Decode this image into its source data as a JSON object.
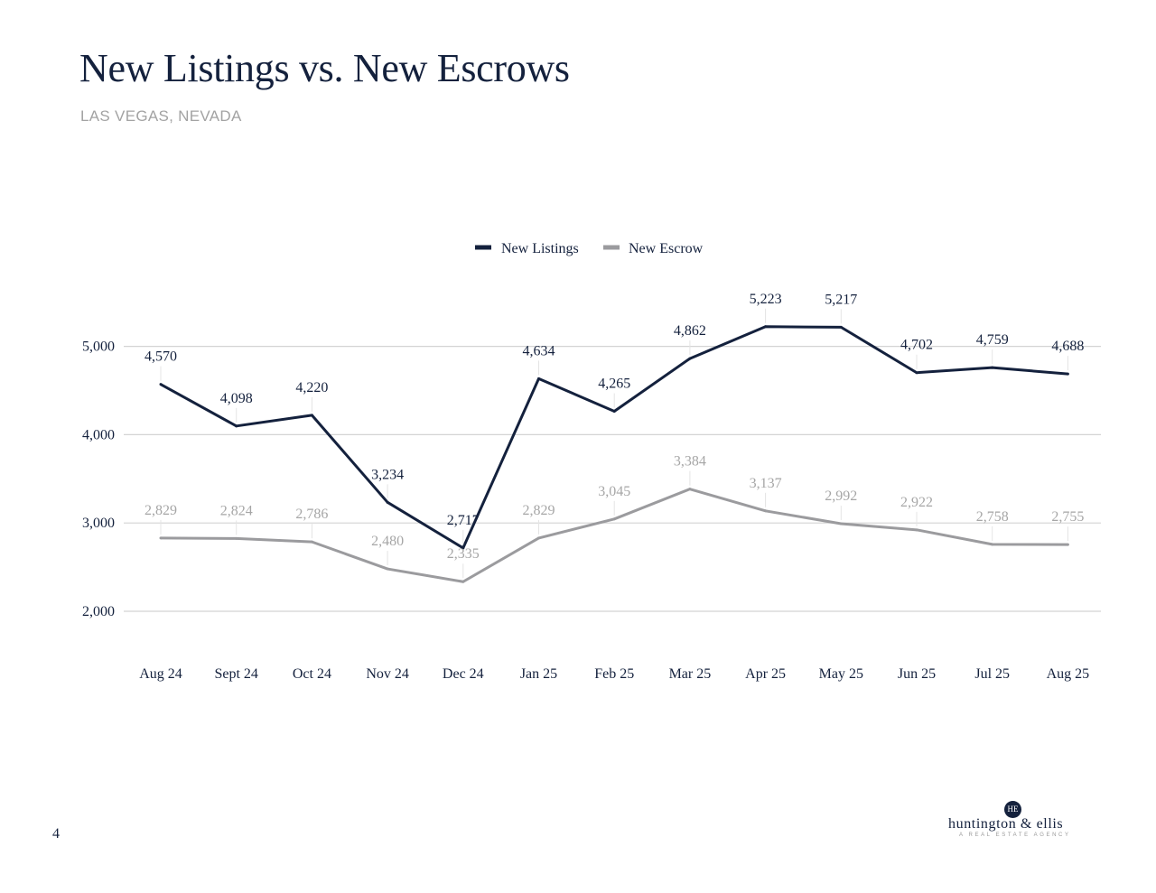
{
  "header": {
    "title": "New Listings vs. New Escrows",
    "subtitle": "LAS VEGAS, NEVADA"
  },
  "page_number": "4",
  "logo": {
    "monogram": "H E",
    "name": "huntington & ellis",
    "tagline": "A REAL ESTATE AGENCY"
  },
  "colors": {
    "new_listings": "#14213d",
    "new_escrow": "#9b9b9e",
    "grid": "#d4d4d4",
    "axis_text": "#14213d"
  },
  "chart_data": {
    "type": "line",
    "title": "",
    "xlabel": "",
    "ylabel": "",
    "categories": [
      "Aug 24",
      "Sept 24",
      "Oct 24",
      "Nov 24",
      "Dec 24",
      "Jan 25",
      "Feb 25",
      "Mar 25",
      "Apr 25",
      "May 25",
      "Jun 25",
      "Jul 25",
      "Aug 25"
    ],
    "series": [
      {
        "name": "New Listings",
        "values": [
          4570,
          4098,
          4220,
          3234,
          2717,
          4634,
          4265,
          4862,
          5223,
          5217,
          4702,
          4759,
          4688
        ],
        "labels": [
          "4,570",
          "4,098",
          "4,220",
          "3,234",
          "2,717",
          "4,634",
          "4,265",
          "4,862",
          "5,223",
          "5,217",
          "4,702",
          "4,759",
          "4,688"
        ]
      },
      {
        "name": "New Escrow",
        "values": [
          2829,
          2824,
          2786,
          2480,
          2335,
          2829,
          3045,
          3384,
          3137,
          2992,
          2922,
          2758,
          2755
        ],
        "labels": [
          "2,829",
          "2,824",
          "2,786",
          "2,480",
          "2,335",
          "2,829",
          "3,045",
          "3,384",
          "3,137",
          "2,992",
          "2,922",
          "2,758",
          "2,755"
        ]
      }
    ],
    "yticks": [
      2000,
      3000,
      4000,
      5000
    ],
    "ytick_labels": [
      "2,000",
      "3,000",
      "4,000",
      "5,000"
    ],
    "grid": true,
    "legend_position": "top-center"
  }
}
